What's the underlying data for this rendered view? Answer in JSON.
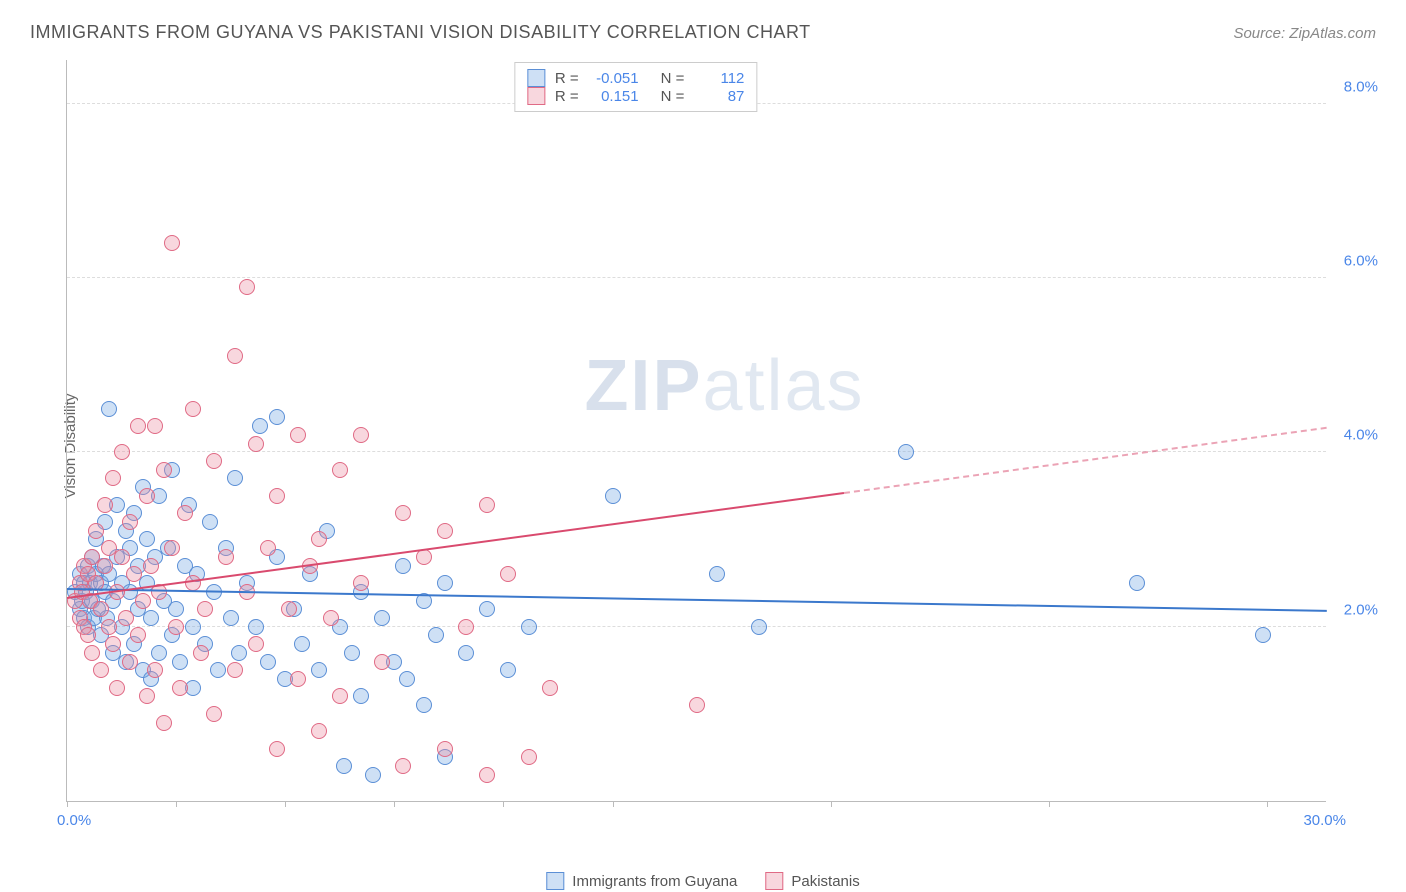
{
  "title": "IMMIGRANTS FROM GUYANA VS PAKISTANI VISION DISABILITY CORRELATION CHART",
  "source": "Source: ZipAtlas.com",
  "watermark_a": "ZIP",
  "watermark_b": "atlas",
  "ylabel": "Vision Disability",
  "chart": {
    "type": "scatter",
    "xlim": [
      0,
      30
    ],
    "ylim": [
      0,
      8.5
    ],
    "x_tick_positions": [
      0,
      2.6,
      5.2,
      7.8,
      10.4,
      13.0,
      18.2,
      23.4,
      28.6
    ],
    "y_gridlines": [
      2.0,
      4.0,
      6.0,
      8.0
    ],
    "y_tick_labels": [
      "2.0%",
      "4.0%",
      "6.0%",
      "8.0%"
    ],
    "x_min_label": "0.0%",
    "x_max_label": "30.0%",
    "background_color": "#ffffff",
    "grid_color": "#dddddd",
    "axis_color": "#bbbbbb",
    "marker_radius": 8,
    "marker_stroke_width": 1,
    "series": [
      {
        "name": "Immigrants from Guyana",
        "fill_color": "rgba(115,165,225,0.35)",
        "stroke_color": "#5b8fd6",
        "r_value": "-0.051",
        "n_value": "112",
        "trend": {
          "x1": 0,
          "y1": 2.45,
          "x2": 30,
          "y2": 2.2,
          "solid_until_x": 30,
          "color": "#3b78cc"
        },
        "points": [
          [
            0.2,
            2.4
          ],
          [
            0.3,
            2.2
          ],
          [
            0.3,
            2.6
          ],
          [
            0.35,
            2.3
          ],
          [
            0.4,
            2.5
          ],
          [
            0.4,
            2.1
          ],
          [
            0.45,
            2.4
          ],
          [
            0.5,
            2.7
          ],
          [
            0.5,
            2.0
          ],
          [
            0.55,
            2.5
          ],
          [
            0.6,
            2.3
          ],
          [
            0.6,
            2.8
          ],
          [
            0.65,
            2.1
          ],
          [
            0.7,
            2.6
          ],
          [
            0.7,
            3.0
          ],
          [
            0.75,
            2.2
          ],
          [
            0.8,
            2.5
          ],
          [
            0.8,
            1.9
          ],
          [
            0.85,
            2.7
          ],
          [
            0.9,
            2.4
          ],
          [
            0.9,
            3.2
          ],
          [
            0.95,
            2.1
          ],
          [
            1.0,
            2.6
          ],
          [
            1.0,
            4.5
          ],
          [
            1.1,
            2.3
          ],
          [
            1.1,
            1.7
          ],
          [
            1.2,
            2.8
          ],
          [
            1.2,
            3.4
          ],
          [
            1.3,
            2.0
          ],
          [
            1.3,
            2.5
          ],
          [
            1.4,
            3.1
          ],
          [
            1.4,
            1.6
          ],
          [
            1.5,
            2.4
          ],
          [
            1.5,
            2.9
          ],
          [
            1.6,
            1.8
          ],
          [
            1.6,
            3.3
          ],
          [
            1.7,
            2.2
          ],
          [
            1.7,
            2.7
          ],
          [
            1.8,
            3.6
          ],
          [
            1.8,
            1.5
          ],
          [
            1.9,
            2.5
          ],
          [
            1.9,
            3.0
          ],
          [
            2.0,
            2.1
          ],
          [
            2.0,
            1.4
          ],
          [
            2.1,
            2.8
          ],
          [
            2.2,
            3.5
          ],
          [
            2.2,
            1.7
          ],
          [
            2.3,
            2.3
          ],
          [
            2.4,
            2.9
          ],
          [
            2.5,
            1.9
          ],
          [
            2.5,
            3.8
          ],
          [
            2.6,
            2.2
          ],
          [
            2.7,
            1.6
          ],
          [
            2.8,
            2.7
          ],
          [
            2.9,
            3.4
          ],
          [
            3.0,
            2.0
          ],
          [
            3.0,
            1.3
          ],
          [
            3.1,
            2.6
          ],
          [
            3.3,
            1.8
          ],
          [
            3.4,
            3.2
          ],
          [
            3.5,
            2.4
          ],
          [
            3.6,
            1.5
          ],
          [
            3.8,
            2.9
          ],
          [
            3.9,
            2.1
          ],
          [
            4.0,
            3.7
          ],
          [
            4.1,
            1.7
          ],
          [
            4.3,
            2.5
          ],
          [
            4.5,
            2.0
          ],
          [
            4.6,
            4.3
          ],
          [
            4.8,
            1.6
          ],
          [
            5.0,
            2.8
          ],
          [
            5.0,
            4.4
          ],
          [
            5.2,
            1.4
          ],
          [
            5.4,
            2.2
          ],
          [
            5.6,
            1.8
          ],
          [
            5.8,
            2.6
          ],
          [
            6.0,
            1.5
          ],
          [
            6.2,
            3.1
          ],
          [
            6.5,
            2.0
          ],
          [
            6.6,
            0.4
          ],
          [
            6.8,
            1.7
          ],
          [
            7.0,
            2.4
          ],
          [
            7.0,
            1.2
          ],
          [
            7.3,
            0.3
          ],
          [
            7.5,
            2.1
          ],
          [
            7.8,
            1.6
          ],
          [
            8.0,
            2.7
          ],
          [
            8.1,
            1.4
          ],
          [
            8.5,
            2.3
          ],
          [
            8.5,
            1.1
          ],
          [
            8.8,
            1.9
          ],
          [
            9.0,
            2.5
          ],
          [
            9.0,
            0.5
          ],
          [
            9.5,
            1.7
          ],
          [
            10.0,
            2.2
          ],
          [
            10.5,
            1.5
          ],
          [
            11.0,
            2.0
          ],
          [
            13.0,
            3.5
          ],
          [
            15.5,
            2.6
          ],
          [
            16.5,
            2.0
          ],
          [
            20.0,
            4.0
          ],
          [
            25.5,
            2.5
          ],
          [
            28.5,
            1.9
          ]
        ]
      },
      {
        "name": "Pakistanis",
        "fill_color": "rgba(235,140,160,0.35)",
        "stroke_color": "#e06a85",
        "r_value": "0.151",
        "n_value": "87",
        "trend": {
          "x1": 0,
          "y1": 2.35,
          "x2": 30,
          "y2": 4.3,
          "solid_until_x": 18.5,
          "color": "#d94a6e"
        },
        "points": [
          [
            0.2,
            2.3
          ],
          [
            0.3,
            2.5
          ],
          [
            0.3,
            2.1
          ],
          [
            0.35,
            2.4
          ],
          [
            0.4,
            2.7
          ],
          [
            0.4,
            2.0
          ],
          [
            0.5,
            2.6
          ],
          [
            0.5,
            1.9
          ],
          [
            0.55,
            2.3
          ],
          [
            0.6,
            2.8
          ],
          [
            0.6,
            1.7
          ],
          [
            0.7,
            2.5
          ],
          [
            0.7,
            3.1
          ],
          [
            0.8,
            2.2
          ],
          [
            0.8,
            1.5
          ],
          [
            0.9,
            2.7
          ],
          [
            0.9,
            3.4
          ],
          [
            1.0,
            2.0
          ],
          [
            1.0,
            2.9
          ],
          [
            1.1,
            1.8
          ],
          [
            1.1,
            3.7
          ],
          [
            1.2,
            2.4
          ],
          [
            1.2,
            1.3
          ],
          [
            1.3,
            2.8
          ],
          [
            1.3,
            4.0
          ],
          [
            1.4,
            2.1
          ],
          [
            1.5,
            3.2
          ],
          [
            1.5,
            1.6
          ],
          [
            1.6,
            2.6
          ],
          [
            1.7,
            4.3
          ],
          [
            1.7,
            1.9
          ],
          [
            1.8,
            2.3
          ],
          [
            1.9,
            3.5
          ],
          [
            1.9,
            1.2
          ],
          [
            2.0,
            2.7
          ],
          [
            2.1,
            4.3
          ],
          [
            2.1,
            1.5
          ],
          [
            2.2,
            2.4
          ],
          [
            2.3,
            3.8
          ],
          [
            2.3,
            0.9
          ],
          [
            2.5,
            2.9
          ],
          [
            2.5,
            6.4
          ],
          [
            2.6,
            2.0
          ],
          [
            2.7,
            1.3
          ],
          [
            2.8,
            3.3
          ],
          [
            3.0,
            2.5
          ],
          [
            3.0,
            4.5
          ],
          [
            3.2,
            1.7
          ],
          [
            3.3,
            2.2
          ],
          [
            3.5,
            3.9
          ],
          [
            3.5,
            1.0
          ],
          [
            3.8,
            2.8
          ],
          [
            4.0,
            5.1
          ],
          [
            4.0,
            1.5
          ],
          [
            4.3,
            2.4
          ],
          [
            4.3,
            5.9
          ],
          [
            4.5,
            4.1
          ],
          [
            4.5,
            1.8
          ],
          [
            4.8,
            2.9
          ],
          [
            5.0,
            3.5
          ],
          [
            5.0,
            0.6
          ],
          [
            5.3,
            2.2
          ],
          [
            5.5,
            4.2
          ],
          [
            5.5,
            1.4
          ],
          [
            5.8,
            2.7
          ],
          [
            6.0,
            3.0
          ],
          [
            6.0,
            0.8
          ],
          [
            6.3,
            2.1
          ],
          [
            6.5,
            3.8
          ],
          [
            6.5,
            1.2
          ],
          [
            7.0,
            2.5
          ],
          [
            7.0,
            4.2
          ],
          [
            7.5,
            1.6
          ],
          [
            8.0,
            3.3
          ],
          [
            8.0,
            0.4
          ],
          [
            8.5,
            2.8
          ],
          [
            9.0,
            3.1
          ],
          [
            9.0,
            0.6
          ],
          [
            9.5,
            2.0
          ],
          [
            10.0,
            3.4
          ],
          [
            10.0,
            0.3
          ],
          [
            10.5,
            2.6
          ],
          [
            11.0,
            0.5
          ],
          [
            11.5,
            1.3
          ],
          [
            15.0,
            1.1
          ]
        ]
      }
    ]
  },
  "legend_top": {
    "r_label": "R =",
    "n_label": "N ="
  }
}
